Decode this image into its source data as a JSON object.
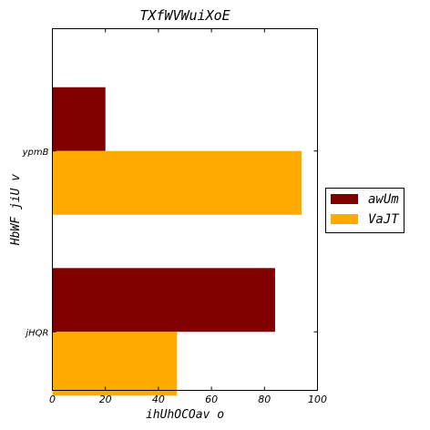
{
  "chart_data": {
    "type": "bar",
    "orientation": "horizontal",
    "title": "TXfWVWuiXoE",
    "xlabel": "ihUhOCOav o",
    "ylabel": "HbWF jiU v",
    "categories": [
      "ypmB",
      "jHQR"
    ],
    "series": [
      {
        "name": "awUm",
        "values": [
          20,
          84
        ],
        "color": "#800000"
      },
      {
        "name": "VaJT",
        "values": [
          94,
          47
        ],
        "color": "#FFAA00"
      }
    ],
    "xlim": [
      0,
      100
    ],
    "xticks": [
      "0",
      "20",
      "40",
      "60",
      "80",
      "100"
    ],
    "grid": false,
    "legend": "right"
  }
}
